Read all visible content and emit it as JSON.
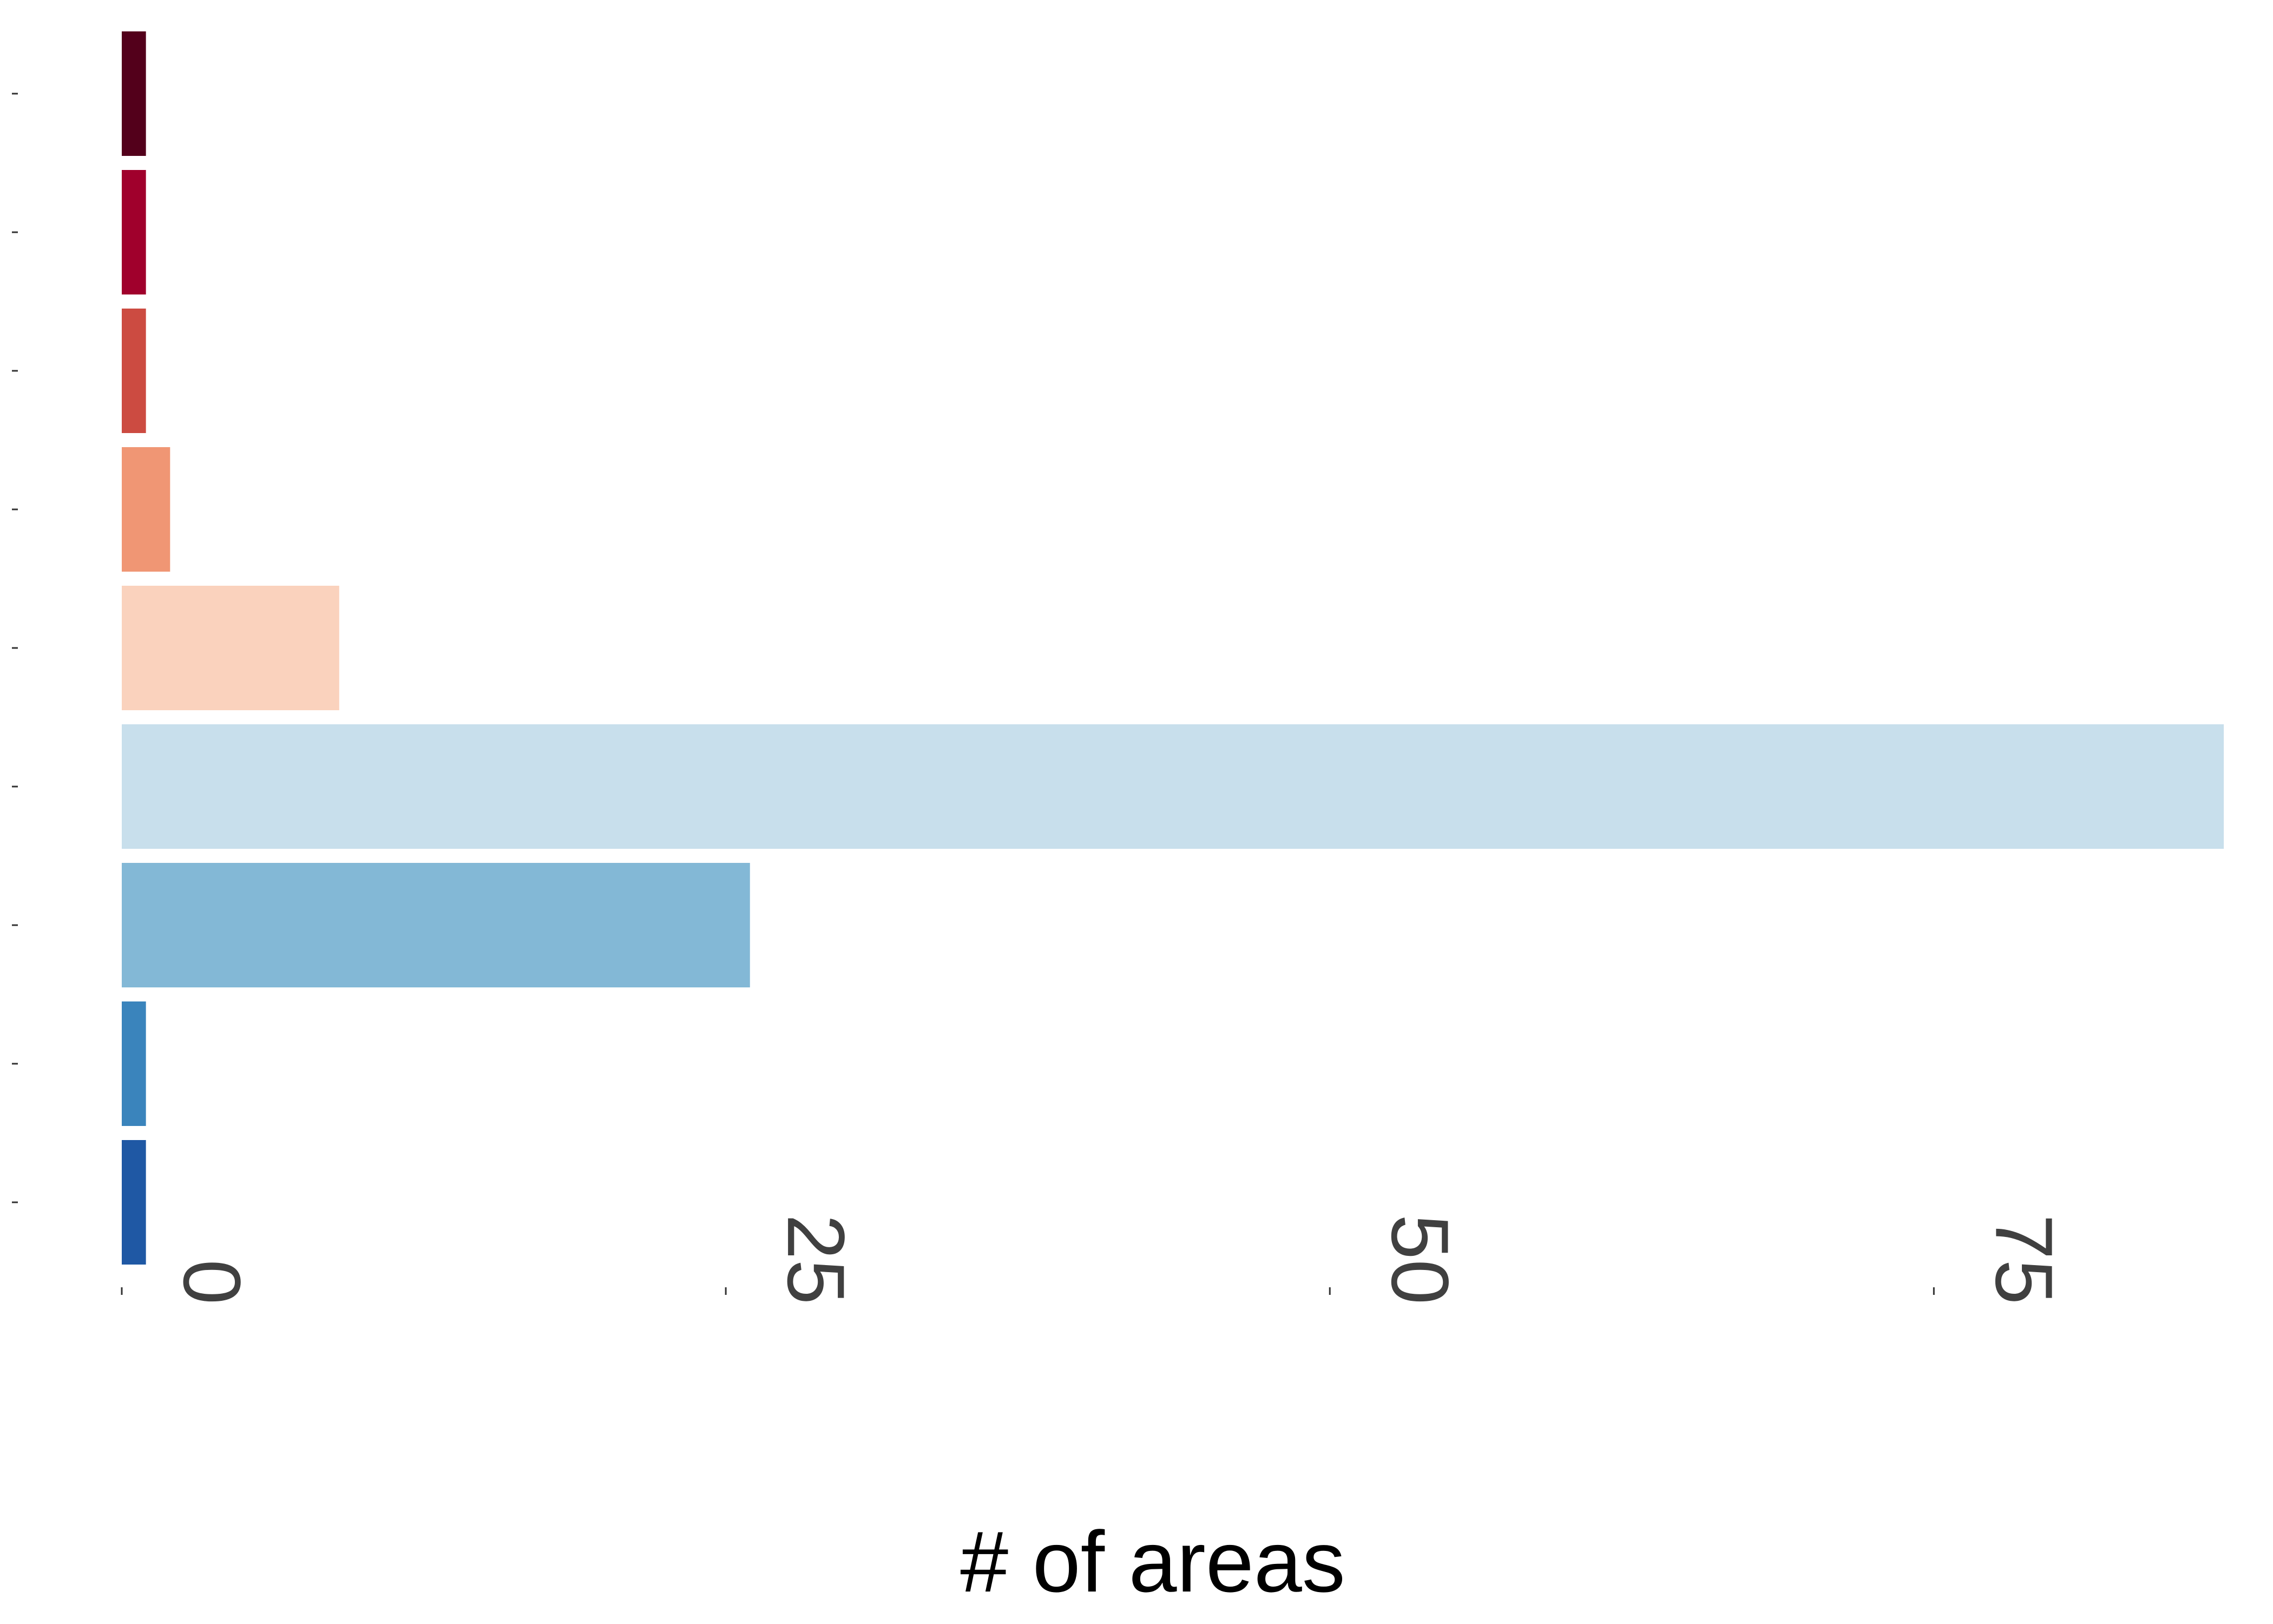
{
  "chart_data": {
    "type": "bar",
    "orientation": "horizontal",
    "categories": [
      "",
      "",
      "",
      "",
      "",
      "",
      "",
      "",
      ""
    ],
    "values": [
      1,
      1,
      1,
      2,
      9,
      87,
      26,
      1,
      1
    ],
    "bar_colors": [
      "#53001b",
      "#a0002c",
      "#cc4b41",
      "#f09674",
      "#fad2bd",
      "#c8dfec",
      "#83b8d6",
      "#3a84bc",
      "#1f58a4"
    ],
    "xlabel": "# of areas",
    "ylabel": "",
    "xlim": [
      0,
      90
    ],
    "xticks": [
      0,
      25,
      50,
      75
    ],
    "xtick_labels": [
      "0",
      "25",
      "50",
      "75"
    ],
    "xtick_label_rotation": "90 (reading upward from bottom)",
    "grid": false,
    "legend": "none"
  }
}
